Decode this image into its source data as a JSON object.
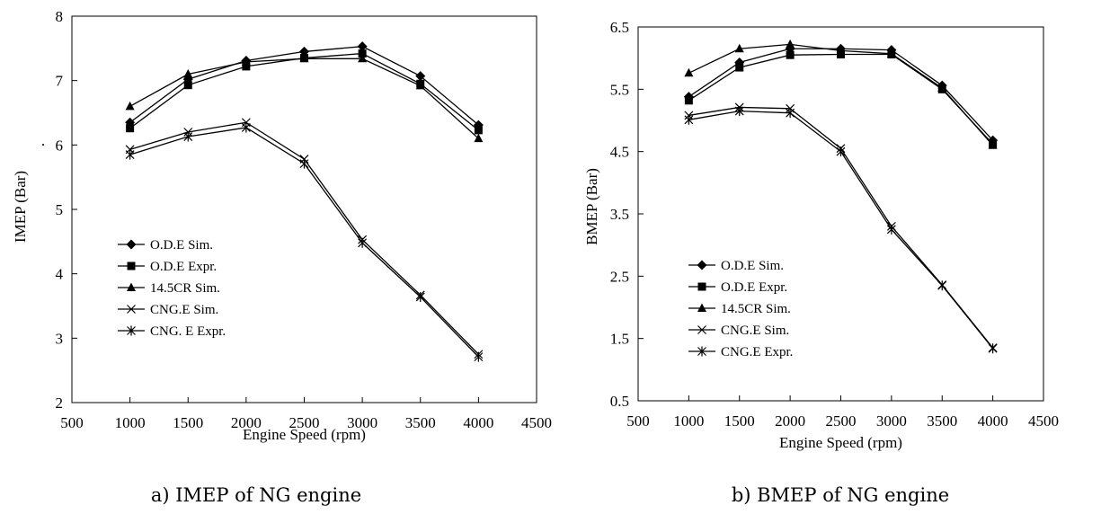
{
  "chart_data": [
    {
      "type": "line",
      "xlabel": "Engine Speed (rpm)",
      "ylabel": "IMEP (Bar)",
      "ylabel_suffix": ".",
      "caption": "a) IMEP of NG engine",
      "xlim": [
        500,
        4500
      ],
      "ylim": [
        2,
        8
      ],
      "xticks": [
        500,
        1000,
        1500,
        2000,
        2500,
        3000,
        3500,
        4000,
        4500
      ],
      "yticks": [
        2,
        3,
        4,
        5,
        6,
        7,
        8
      ],
      "ytick_labels": [
        "2",
        "3",
        "4",
        "5",
        "6",
        "7",
        "8"
      ],
      "grid": false,
      "legend": "bottom-left",
      "x": [
        1000,
        1500,
        2000,
        2500,
        3000,
        3500,
        4000
      ],
      "series": [
        {
          "name": "O.D.E Sim.",
          "marker": "diamond",
          "values": [
            6.35,
            7.02,
            7.31,
            7.45,
            7.53,
            7.07,
            6.31
          ]
        },
        {
          "name": "O.D.E Expr.",
          "marker": "square",
          "values": [
            6.26,
            6.93,
            7.22,
            7.35,
            7.42,
            6.95,
            6.23
          ]
        },
        {
          "name": "14.5CR Sim.",
          "marker": "triangle",
          "values": [
            6.6,
            7.1,
            7.29,
            7.34,
            7.34,
            6.92,
            6.1
          ]
        },
        {
          "name": "CNG.E Sim.",
          "marker": "x",
          "values": [
            5.93,
            6.2,
            6.35,
            5.78,
            4.53,
            3.67,
            2.75
          ]
        },
        {
          "name": "CNG. E Expr.",
          "marker": "star",
          "values": [
            5.85,
            6.13,
            6.27,
            5.71,
            4.48,
            3.64,
            2.71
          ]
        }
      ]
    },
    {
      "type": "line",
      "xlabel": "Engine Speed (rpm)",
      "ylabel": "BMEP (Bar)",
      "ylabel_suffix": "",
      "caption": "b) BMEP of NG engine",
      "xlim": [
        500,
        4500
      ],
      "ylim": [
        0.5,
        6.5
      ],
      "xticks": [
        500,
        1000,
        1500,
        2000,
        2500,
        3000,
        3500,
        4000,
        4500
      ],
      "yticks": [
        0.5,
        1.5,
        2.5,
        3.5,
        4.5,
        5.5,
        6.5
      ],
      "ytick_labels": [
        "0.5",
        "1.5",
        "2.5",
        "3.5",
        "4.5",
        "5.5",
        "6.5"
      ],
      "grid": false,
      "legend": "bottom-left",
      "x": [
        1000,
        1500,
        2000,
        2500,
        3000,
        3500,
        4000
      ],
      "series": [
        {
          "name": "O.D.E Sim.",
          "marker": "diamond",
          "values": [
            5.38,
            5.93,
            6.15,
            6.15,
            6.13,
            5.56,
            4.68
          ]
        },
        {
          "name": "O.D.E Expr.",
          "marker": "square",
          "values": [
            5.32,
            5.85,
            6.05,
            6.06,
            6.06,
            5.5,
            4.62
          ]
        },
        {
          "name": "14.5CR Sim.",
          "marker": "triangle",
          "values": [
            5.76,
            6.15,
            6.22,
            6.12,
            6.07,
            5.52,
            4.6
          ]
        },
        {
          "name": "CNG.E Sim.",
          "marker": "x",
          "values": [
            5.08,
            5.21,
            5.19,
            4.55,
            3.3,
            2.36,
            1.35
          ]
        },
        {
          "name": "CNG.E Expr.",
          "marker": "star",
          "values": [
            5.01,
            5.15,
            5.12,
            4.5,
            3.25,
            2.35,
            1.34
          ]
        }
      ]
    }
  ]
}
